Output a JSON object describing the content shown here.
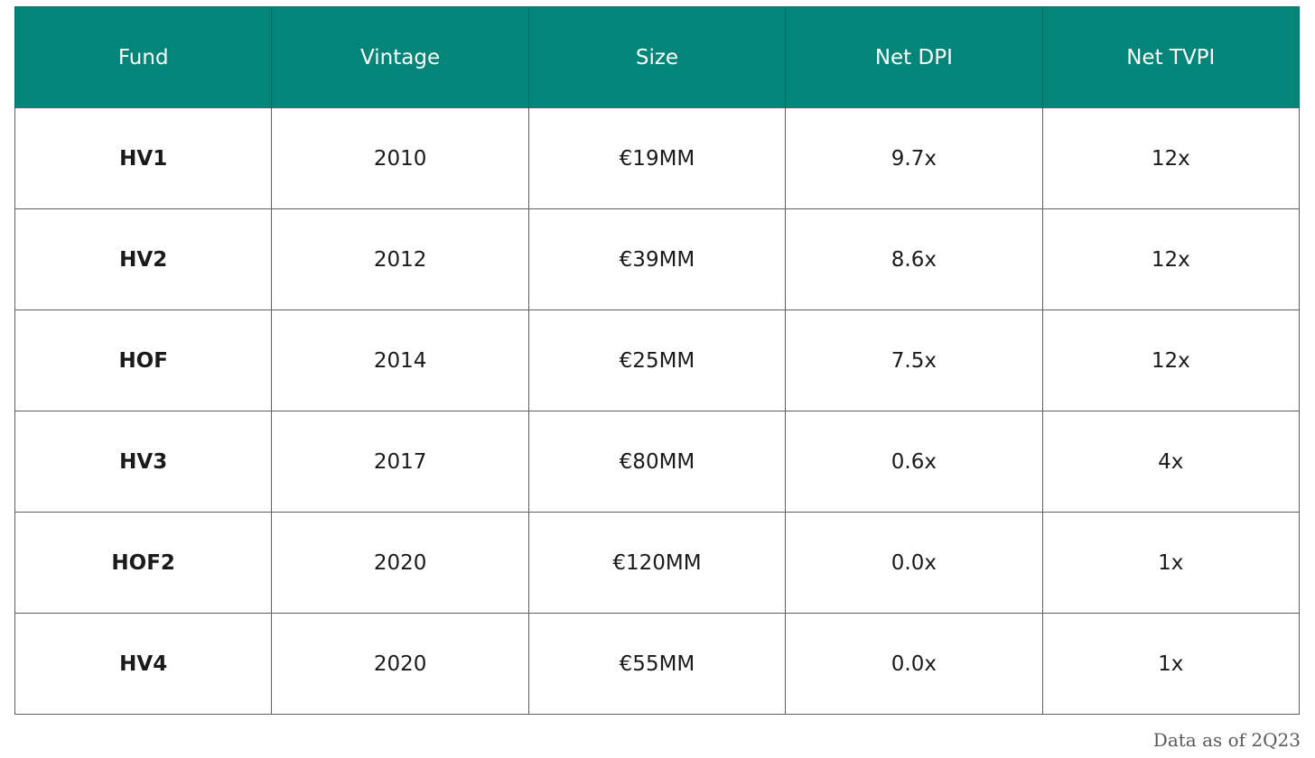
{
  "chart_data": {
    "type": "table",
    "columns": [
      "Fund",
      "Vintage",
      "Size",
      "Net DPI",
      "Net TVPI"
    ],
    "rows": [
      [
        "HV1",
        "2010",
        "€19MM",
        "9.7x",
        "12x"
      ],
      [
        "HV2",
        "2012",
        "€39MM",
        "8.6x",
        "12x"
      ],
      [
        "HOF",
        "2014",
        "€25MM",
        "7.5x",
        "12x"
      ],
      [
        "HV3",
        "2017",
        "€80MM",
        "0.6x",
        "4x"
      ],
      [
        "HOF2",
        "2020",
        "€120MM",
        "0.0x",
        "1x"
      ],
      [
        "HV4",
        "2020",
        "€55MM",
        "0.0x",
        "1x"
      ]
    ]
  },
  "footnote": "Data as of 2Q23",
  "colors": {
    "header_bg": "#04857a",
    "header_text": "#ffffff",
    "border": "#5f5f5f"
  }
}
